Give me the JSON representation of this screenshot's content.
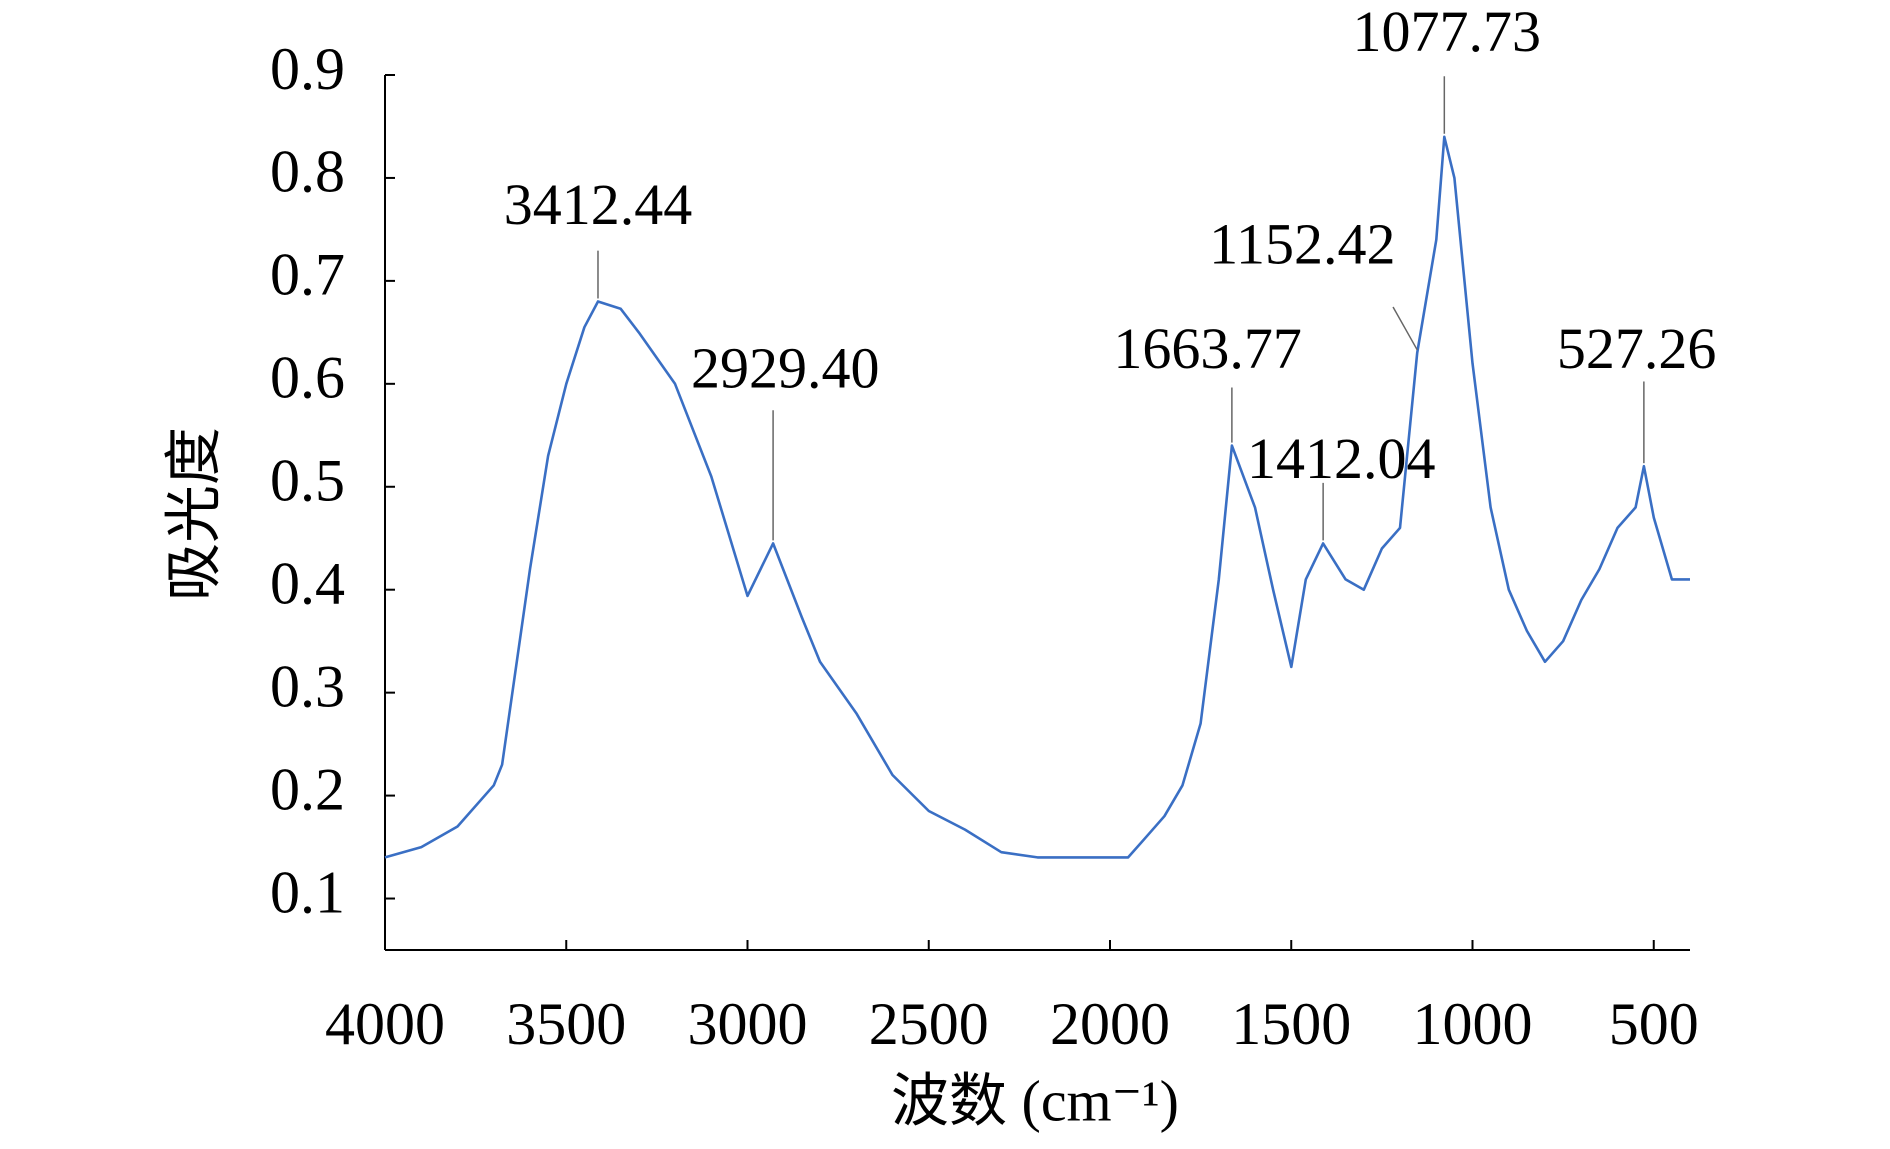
{
  "chart_data": {
    "type": "line",
    "xlabel": "波数 (cm⁻¹)",
    "ylabel": "吸光度",
    "x": [
      4000,
      3900,
      3800,
      3700,
      3677,
      3600,
      3550,
      3500,
      3450,
      3412.44,
      3350,
      3300,
      3200,
      3100,
      3000,
      2929.4,
      2850,
      2800,
      2700,
      2600,
      2500,
      2400,
      2300,
      2200,
      2100,
      2000,
      1950,
      1900,
      1850,
      1800,
      1750,
      1700,
      1663.77,
      1600,
      1550,
      1500,
      1460,
      1412.04,
      1350,
      1300,
      1250,
      1200,
      1152.42,
      1100,
      1077.73,
      1050,
      1000,
      950,
      900,
      850,
      800,
      750,
      700,
      650,
      600,
      550,
      527.26,
      500,
      450,
      400
    ],
    "values": [
      0.14,
      0.15,
      0.17,
      0.21,
      0.23,
      0.42,
      0.53,
      0.6,
      0.655,
      0.68,
      0.673,
      0.65,
      0.6,
      0.51,
      0.394,
      0.445,
      0.373,
      0.33,
      0.28,
      0.22,
      0.185,
      0.167,
      0.145,
      0.14,
      0.14,
      0.14,
      0.14,
      0.16,
      0.18,
      0.21,
      0.27,
      0.41,
      0.54,
      0.48,
      0.4,
      0.325,
      0.41,
      0.445,
      0.41,
      0.4,
      0.44,
      0.46,
      0.63,
      0.74,
      0.84,
      0.8,
      0.62,
      0.48,
      0.4,
      0.36,
      0.33,
      0.35,
      0.39,
      0.42,
      0.46,
      0.48,
      0.52,
      0.47,
      0.41,
      0.41
    ],
    "color": "#3a6fc4",
    "xlim": [
      4000,
      400
    ],
    "ylim": [
      0.05,
      0.9
    ],
    "xticks": [
      4000,
      3500,
      3000,
      2500,
      2000,
      1500,
      1000,
      500
    ],
    "yticks": [
      0.1,
      0.2,
      0.3,
      0.4,
      0.5,
      0.6,
      0.7,
      0.8,
      0.9
    ],
    "annotations": [
      {
        "text": "3412.44",
        "x": 3412.44,
        "y": 0.68
      },
      {
        "text": "2929.40",
        "x": 2929.4,
        "y": 0.445
      },
      {
        "text": "1663.77",
        "x": 1663.77,
        "y": 0.54
      },
      {
        "text": "1412.04",
        "x": 1412.04,
        "y": 0.445
      },
      {
        "text": "1152.42",
        "x": 1152.42,
        "y": 0.63
      },
      {
        "text": "1077.73",
        "x": 1077.73,
        "y": 0.84
      },
      {
        "text": "527.26",
        "x": 527.26,
        "y": 0.52
      }
    ]
  }
}
